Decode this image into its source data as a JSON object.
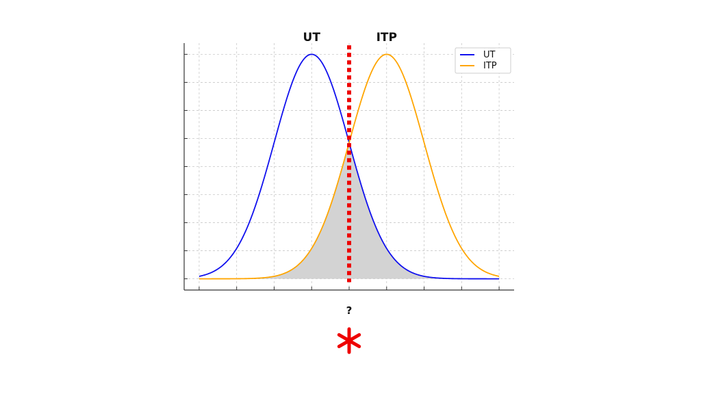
{
  "chart_data": {
    "type": "line",
    "title": "",
    "xlabel": "",
    "ylabel": "",
    "x_tick_count": 9,
    "y_tick_count": 9,
    "grid": true,
    "legend_position": "top-right",
    "series": [
      {
        "name": "UT",
        "color": "#1010ee",
        "mean": -1,
        "sd": 1
      },
      {
        "name": "ITP",
        "color": "#ffa500",
        "mean": 1,
        "sd": 1
      }
    ],
    "x_range": [
      -4,
      4
    ],
    "xlim": [
      -4.4,
      4.4
    ],
    "ylim": [
      -0.05,
      1.05
    ],
    "threshold": {
      "x": 0,
      "color": "#ee0000"
    },
    "overlap_fill_color": "#d3d3d3",
    "top_labels": [
      {
        "text": "UT",
        "x": -1
      },
      {
        "text": "ITP",
        "x": 1
      }
    ],
    "below_axis_text": "?",
    "marker_symbol": "asterisk",
    "marker_color": "#ee0000"
  }
}
